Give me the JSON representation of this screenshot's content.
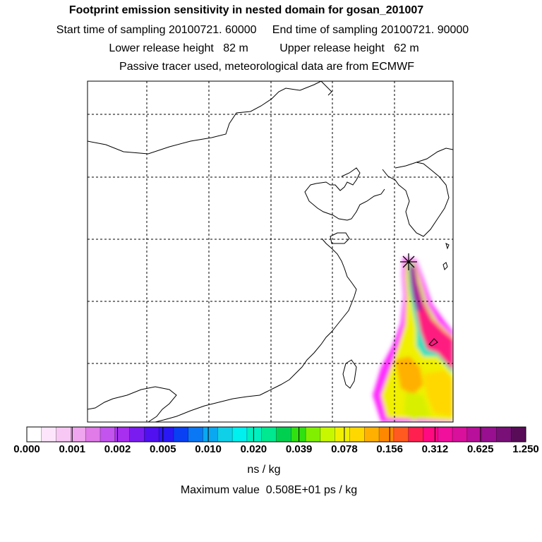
{
  "titles": {
    "line1": "Footprint emission sensitivity in nested domain for gosan_201007",
    "line2": "Start time of sampling 20100721. 60000     End time of sampling 20100721. 90000",
    "line3": "Lower release height   82 m          Upper release height   62 m",
    "line4": "Passive tracer used, meteorological data are from ECMWF"
  },
  "colorbar": {
    "colors": [
      "#ffffff",
      "#fde6fb",
      "#f8c8f4",
      "#f0a6ee",
      "#e07be8",
      "#c454ee",
      "#a82ef0",
      "#7a1cf0",
      "#5010f0",
      "#2a18f4",
      "#0a40f4",
      "#0a78f4",
      "#0aa8f0",
      "#10d0e8",
      "#00f0f0",
      "#00f0c0",
      "#00e890",
      "#00d050",
      "#30e010",
      "#80f000",
      "#c8f800",
      "#f0f000",
      "#ffd800",
      "#ffb000",
      "#ff8800",
      "#ff5a20",
      "#ff2050",
      "#ff0a80",
      "#f0109c",
      "#d8109c",
      "#b8109a",
      "#981090",
      "#781078",
      "#580c58"
    ],
    "tick_labels": [
      "0.000",
      "0.001",
      "0.002",
      "0.005",
      "0.010",
      "0.020",
      "0.039",
      "0.078",
      "0.156",
      "0.312",
      "0.625",
      "1.250"
    ],
    "units": "ns / kg"
  },
  "max_value_text": "Maximum value  0.508E+01 ps / kg",
  "map": {
    "grid": "on",
    "receptor_marker": "star-icon"
  }
}
